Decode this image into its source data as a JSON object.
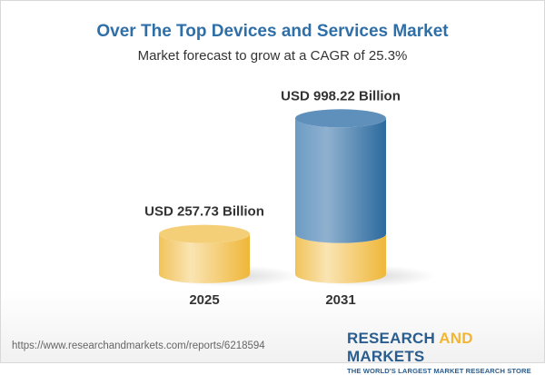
{
  "chart_data": {
    "type": "bar",
    "style": "3d-cylinder",
    "title": "Over The Top Devices and Services Market",
    "subtitle": "Market forecast to grow at a CAGR of 25.3%",
    "categories": [
      "2025",
      "2031"
    ],
    "values": [
      257.73,
      998.22
    ],
    "data_labels": [
      "USD 257.73 Billion",
      "USD 998.22 Billion"
    ],
    "unit": "USD Billion",
    "colors": {
      "base": "#f2c45a",
      "growth": "#3f7bb0",
      "title": "#2f6fa8"
    },
    "grid": false,
    "legend": "none"
  },
  "footer": {
    "url": "https://www.researchandmarkets.com/reports/6218594",
    "logo_part1": "RESEARCH ",
    "logo_part2": "AND",
    "logo_part3": " MARKETS",
    "tagline": "THE WORLD'S LARGEST MARKET RESEARCH STORE"
  }
}
